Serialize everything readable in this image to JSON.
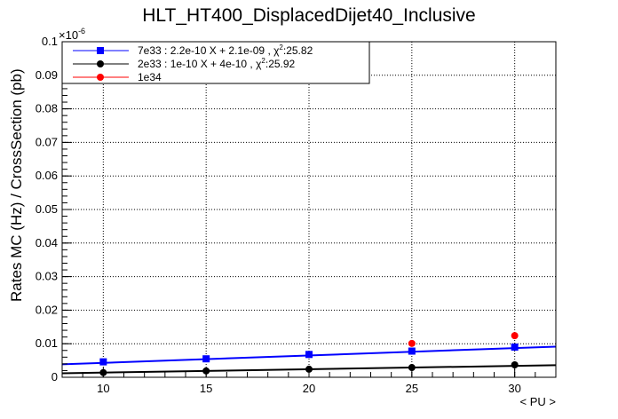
{
  "chart_data": {
    "type": "scatter",
    "title": "HLT_HT400_DisplacedDijet40_Inclusive",
    "xlabel": "< PU >",
    "ylabel": "Rates MC (Hz) / CrossSection (pb)",
    "y_exponent": "×10",
    "y_exponent_power": "-6",
    "xlim": [
      8,
      32
    ],
    "ylim": [
      0,
      0.1
    ],
    "x_ticks": [
      10,
      15,
      20,
      25,
      30
    ],
    "y_ticks": [
      0,
      0.01,
      0.02,
      0.03,
      0.04,
      0.05,
      0.06,
      0.07,
      0.08,
      0.09,
      0.1
    ],
    "grid": true,
    "legend_position": "top-left",
    "series": [
      {
        "name": "7e33 : 2.2e-10 X + 2.1e-09 , χ",
        "chi_power": "2",
        "chi_value": ":25.82",
        "color": "#0000ff",
        "marker": "square",
        "x": [
          10,
          15,
          20,
          25,
          30
        ],
        "y": [
          0.0046,
          0.0055,
          0.0068,
          0.0078,
          0.009
        ],
        "fit": {
          "slope": 0.00022,
          "intercept": 0.0021
        }
      },
      {
        "name": "2e33 : 1e-10 X + 4e-10 , χ",
        "chi_power": "2",
        "chi_value": ":25.92",
        "color": "#000000",
        "marker": "circle",
        "x": [
          10,
          15,
          20,
          25,
          30
        ],
        "y": [
          0.0014,
          0.0019,
          0.0024,
          0.0029,
          0.0037
        ],
        "fit": {
          "slope": 0.0001,
          "intercept": 0.0004
        }
      },
      {
        "name": "1e34",
        "color": "#ff0000",
        "marker": "circle",
        "x": [
          25,
          30
        ],
        "y": [
          0.0101,
          0.0124
        ]
      }
    ]
  }
}
